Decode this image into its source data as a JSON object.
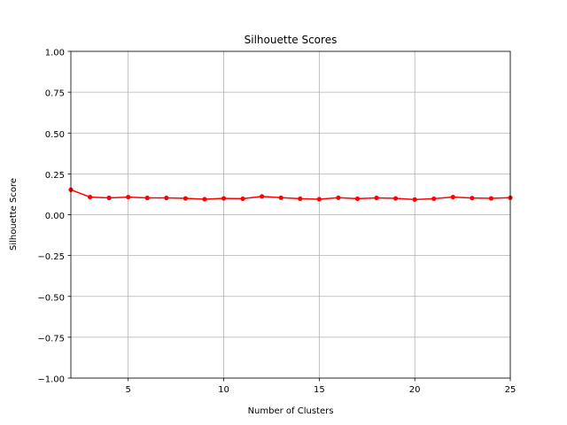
{
  "chart_data": {
    "type": "line",
    "title": "Silhouette Scores",
    "xlabel": "Number of Clusters",
    "ylabel": "Silhouette Score",
    "xlim": [
      2,
      25
    ],
    "ylim": [
      -1.0,
      1.0
    ],
    "xticks": [
      5,
      10,
      15,
      20,
      25
    ],
    "yticks": [
      -1.0,
      -0.75,
      -0.5,
      -0.25,
      0.0,
      0.25,
      0.5,
      0.75,
      1.0
    ],
    "xtick_labels": [
      "5",
      "10",
      "15",
      "20",
      "25"
    ],
    "ytick_labels": [
      "−1.00",
      "−0.75",
      "−0.50",
      "−0.25",
      "0.00",
      "0.25",
      "0.50",
      "0.75",
      "1.00"
    ],
    "grid": true,
    "legend": "none",
    "series": [
      {
        "color": "#ff0000",
        "marker": "circle",
        "x": [
          2,
          3,
          4,
          5,
          6,
          7,
          8,
          9,
          10,
          11,
          12,
          13,
          14,
          15,
          16,
          17,
          18,
          19,
          20,
          21,
          22,
          23,
          24,
          25
        ],
        "values": [
          0.153,
          0.108,
          0.103,
          0.108,
          0.103,
          0.103,
          0.1,
          0.095,
          0.1,
          0.098,
          0.112,
          0.104,
          0.098,
          0.095,
          0.104,
          0.098,
          0.103,
          0.1,
          0.093,
          0.098,
          0.108,
          0.102,
          0.1,
          0.104
        ]
      }
    ]
  }
}
